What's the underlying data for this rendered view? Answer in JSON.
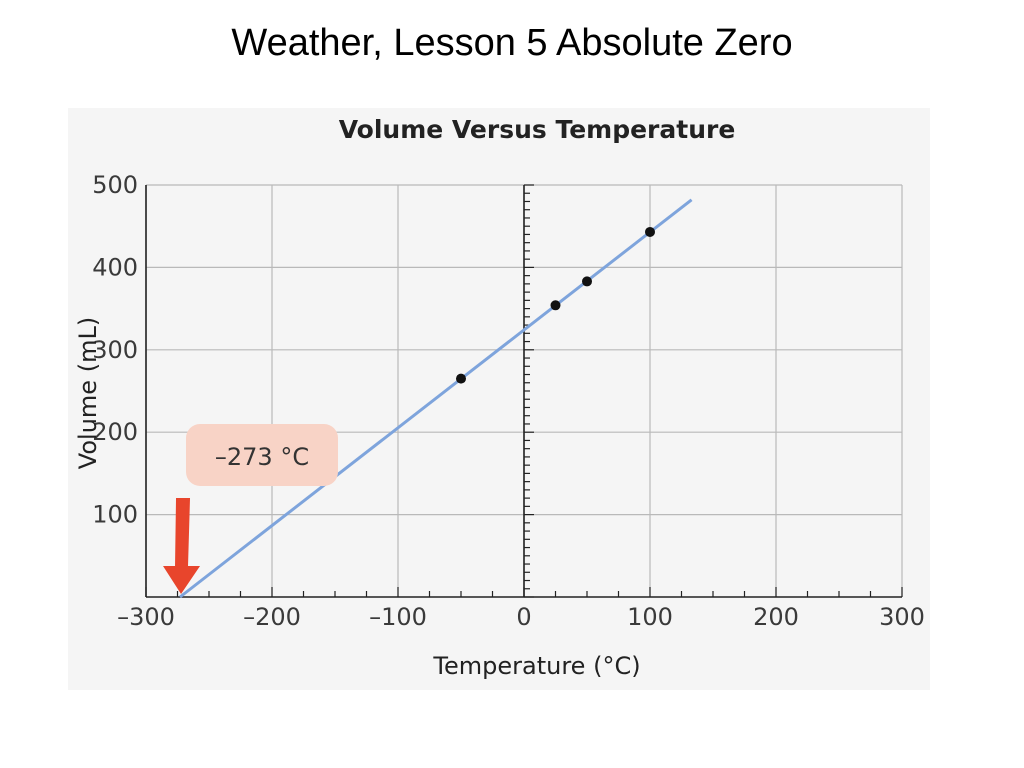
{
  "slide": {
    "title": "Weather, Lesson 5 Absolute Zero"
  },
  "annotation": {
    "label": "–273 °C",
    "x": -273,
    "arrow_color": "#e8452c",
    "box_color": "#f8d3c6"
  },
  "colors": {
    "line": "#7ea4dc",
    "points": "#111111",
    "grid": "#b9b9b9"
  },
  "chart_data": {
    "type": "scatter",
    "title": "Volume Versus Temperature",
    "xlabel": "Temperature (°C)",
    "ylabel": "Volume (mL)",
    "xlim": [
      -300,
      300
    ],
    "ylim": [
      0,
      500
    ],
    "xticks": [
      -300,
      -200,
      -100,
      0,
      100,
      200,
      300
    ],
    "xtick_labels": [
      "–300",
      "–200",
      "–100",
      "0",
      "100",
      "200",
      "300"
    ],
    "yticks": [
      100,
      200,
      300,
      400,
      500
    ],
    "ytick_labels": [
      "100",
      "200",
      "300",
      "400",
      "500"
    ],
    "grid": true,
    "series": [
      {
        "x": [
          -50,
          25,
          50,
          100
        ],
        "y": [
          265,
          354,
          383,
          443
        ]
      }
    ],
    "trend_line": {
      "x": [
        -273,
        133
      ],
      "y": [
        0,
        482
      ]
    }
  }
}
